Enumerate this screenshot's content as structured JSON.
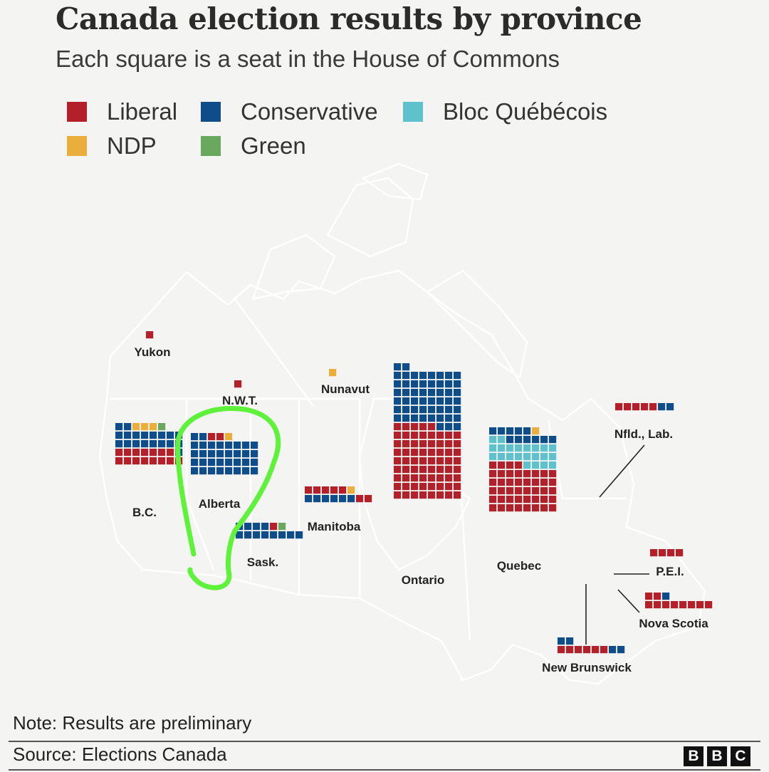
{
  "title": "Canada election results by province",
  "subtitle": "Each square is a seat in the House of Commons",
  "note": "Note: Results are preliminary",
  "source": "Source: Elections Canada",
  "logo": [
    "B",
    "B",
    "C"
  ],
  "colors": {
    "liberal": "#b3202a",
    "conservative": "#0f4c8a",
    "bloc": "#5fc1cc",
    "ndp": "#e9ae3c",
    "green": "#6aa85f",
    "highlight": "#5ef23a"
  },
  "chart_data": {
    "type": "waffle-map",
    "parties": [
      {
        "key": "liberal",
        "name": "Liberal"
      },
      {
        "key": "conservative",
        "name": "Conservative"
      },
      {
        "key": "bloc",
        "name": "Bloc Québécois"
      },
      {
        "key": "ndp",
        "name": "NDP"
      },
      {
        "key": "green",
        "name": "Green"
      }
    ],
    "provinces": [
      {
        "name": "Yukon",
        "seats": {
          "liberal": 1
        }
      },
      {
        "name": "N.W.T.",
        "seats": {
          "liberal": 1
        }
      },
      {
        "name": "Nunavut",
        "seats": {
          "ndp": 1
        }
      },
      {
        "name": "B.C.",
        "seats": {
          "liberal": 15,
          "conservative": 19,
          "ndp": 3,
          "green": 1
        }
      },
      {
        "name": "Alberta",
        "seats": {
          "conservative": 34,
          "liberal": 2,
          "ndp": 1
        }
      },
      {
        "name": "Sask.",
        "seats": {
          "conservative": 12,
          "liberal": 1,
          "green": 1
        }
      },
      {
        "name": "Manitoba",
        "seats": {
          "liberal": 7,
          "conservative": 6,
          "ndp": 1
        }
      },
      {
        "name": "Ontario",
        "seats": {
          "liberal": 69,
          "conservative": 53
        }
      },
      {
        "name": "Quebec",
        "seats": {
          "liberal": 44,
          "bloc": 22,
          "conservative": 11,
          "ndp": 1
        }
      },
      {
        "name": "Nfld., Lab.",
        "seats": {
          "liberal": 5,
          "conservative": 2
        }
      },
      {
        "name": "P.E.I.",
        "seats": {
          "liberal": 4
        }
      },
      {
        "name": "Nova Scotia",
        "seats": {
          "liberal": 10,
          "conservative": 1
        }
      },
      {
        "name": "New Brunswick",
        "seats": {
          "liberal": 6,
          "conservative": 4
        }
      }
    ]
  }
}
